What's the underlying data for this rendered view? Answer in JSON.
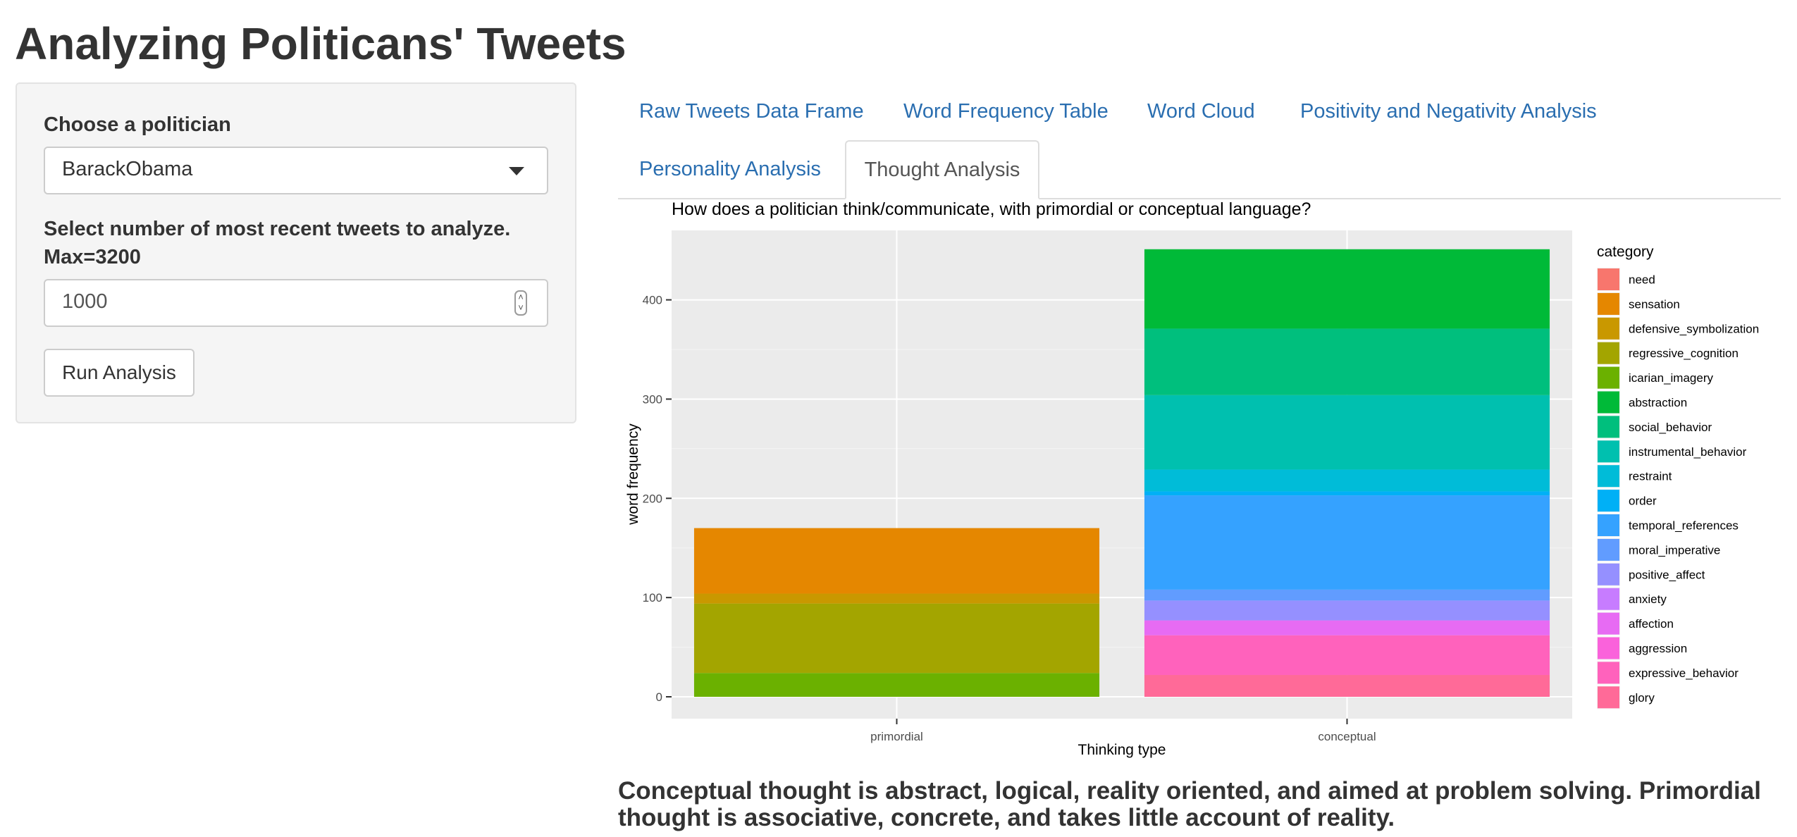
{
  "title": "Analyzing Politicans' Tweets",
  "sidebar": {
    "politician_label": "Choose a politician",
    "politician_value": "BarackObama",
    "tweets_label_line1": "Select number of most recent tweets to analyze.",
    "tweets_label_line2": "Max=3200",
    "tweets_value": "1000",
    "run_button": "Run Analysis"
  },
  "tabs": [
    {
      "label": "Raw Tweets Data Frame",
      "active": false
    },
    {
      "label": "Word Frequency Table",
      "active": false
    },
    {
      "label": "Word Cloud",
      "active": false
    },
    {
      "label": "Positivity and Negativity Analysis",
      "active": false
    },
    {
      "label": "Personality Analysis",
      "active": false
    },
    {
      "label": "Thought Analysis",
      "active": true
    }
  ],
  "chart_data": {
    "type": "bar",
    "stacked": true,
    "title": "How does a politician think/communicate, with primordial or conceptual language?",
    "xlabel": "Thinking type",
    "ylabel": "word frequency",
    "categories": [
      "primordial",
      "conceptual"
    ],
    "ylim": [
      -22,
      470
    ],
    "yticks": [
      0,
      100,
      200,
      300,
      400
    ],
    "legend_title": "category",
    "legend_position": "right",
    "grid": true,
    "series": [
      {
        "name": "need",
        "color": "#F8766D",
        "values": [
          0,
          0
        ]
      },
      {
        "name": "sensation",
        "color": "#E58700",
        "values": [
          66,
          0
        ]
      },
      {
        "name": "defensive_symbolization",
        "color": "#C99800",
        "values": [
          10,
          0
        ]
      },
      {
        "name": "regressive_cognition",
        "color": "#A3A500",
        "values": [
          70,
          0
        ]
      },
      {
        "name": "icarian_imagery",
        "color": "#6BB100",
        "values": [
          24,
          0
        ]
      },
      {
        "name": "abstraction",
        "color": "#00BA38",
        "values": [
          0,
          80
        ]
      },
      {
        "name": "social_behavior",
        "color": "#00BF7D",
        "values": [
          0,
          67
        ]
      },
      {
        "name": "instrumental_behavior",
        "color": "#00C0AF",
        "values": [
          0,
          75
        ]
      },
      {
        "name": "restraint",
        "color": "#00BCD8",
        "values": [
          0,
          22
        ]
      },
      {
        "name": "order",
        "color": "#00B0F6",
        "values": [
          0,
          4
        ]
      },
      {
        "name": "temporal_references",
        "color": "#35A2FF",
        "values": [
          0,
          95
        ]
      },
      {
        "name": "moral_imperative",
        "color": "#619CFF",
        "values": [
          0,
          11
        ]
      },
      {
        "name": "positive_affect",
        "color": "#9590FF",
        "values": [
          0,
          20
        ]
      },
      {
        "name": "anxiety",
        "color": "#C77CFF",
        "values": [
          0,
          0
        ]
      },
      {
        "name": "affection",
        "color": "#E76BF3",
        "values": [
          0,
          15
        ]
      },
      {
        "name": "aggression",
        "color": "#FA62DB",
        "values": [
          0,
          0
        ]
      },
      {
        "name": "expressive_behavior",
        "color": "#FF62BC",
        "values": [
          0,
          40
        ]
      },
      {
        "name": "glory",
        "color": "#FF6A98",
        "values": [
          0,
          22
        ]
      }
    ]
  },
  "description": "Conceptual thought is abstract, logical, reality oriented, and aimed at problem solving. Primordial thought is associative, concrete, and takes little account of reality."
}
